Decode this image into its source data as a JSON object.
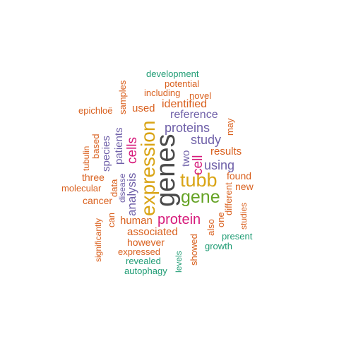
{
  "colors": {
    "dark": "#4a4a4a",
    "orange": "#d9601e",
    "purple": "#6e5fa8",
    "teal": "#1f9c74",
    "magenta": "#d6197a",
    "gold": "#d9a415",
    "green": "#65a325"
  },
  "words": {
    "genes": "genes",
    "expression": "expression",
    "tubb": "tubb",
    "gene": "gene",
    "protein": "protein",
    "cells": "cells",
    "cell": "cell",
    "analysis": "analysis",
    "proteins": "proteins",
    "study": "study",
    "using": "using",
    "reference": "reference",
    "identified": "identified",
    "used": "used",
    "species": "species",
    "patients": "patients",
    "results": "results",
    "associated": "associated",
    "human": "human",
    "development": "development",
    "potential": "potential",
    "including": "including",
    "novel": "novel",
    "epichloe": "epichloë",
    "samples": "samples",
    "based": "based",
    "tubulin": "tubulin",
    "three": "three",
    "molecular": "molecular",
    "data": "data",
    "disease": "disease",
    "cancer": "cancer",
    "can": "can",
    "significantly": "significantly",
    "two": "two",
    "may": "may",
    "found": "found",
    "new": "new",
    "different": "different",
    "one": "one",
    "studies": "studies",
    "also": "also",
    "present": "present",
    "growth": "growth",
    "however": "however",
    "expressed": "expressed",
    "revealed": "revealed",
    "autophagy": "autophagy",
    "levels": "levels",
    "showed": "showed"
  }
}
